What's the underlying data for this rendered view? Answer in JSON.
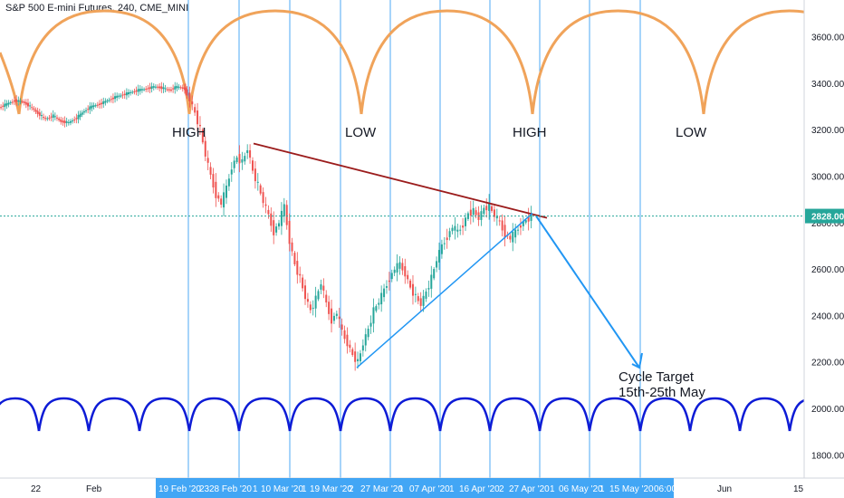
{
  "title": "S&P 500 E-mini Futures, 240, CME_MINI",
  "price_label": "2828.00",
  "colors": {
    "grid_cycle": "#2196f3",
    "upper_arc": "#f0a35a",
    "lower_arc": "#0d1bd6",
    "trend_upper": "#9b1c1c",
    "trend_lower": "#2196f3",
    "arrow": "#2196f3",
    "candle_up": "#26a69a",
    "candle_down": "#ef5350",
    "price_line": "#26a69a",
    "time_highlight": "#2196f3"
  },
  "annotations": [
    "HIGH",
    "LOW",
    "HIGH",
    "LOW"
  ],
  "cycle_target": [
    "Cycle Target",
    "15th-25th May"
  ],
  "chart_data": {
    "type": "candlestick",
    "title": "S&P 500 E-mini Futures, 240, CME_MINI",
    "ylim": [
      1700,
      3750
    ],
    "y_ticks": [
      1800,
      2000,
      2200,
      2400,
      2600,
      2800,
      3000,
      3200,
      3400,
      3600
    ],
    "x_tick_labels": [
      "22",
      "Feb",
      "19 Feb '20",
      "23",
      "28 Feb '20",
      "1",
      "10 Mar '20",
      "1",
      "19 Mar '20",
      "2",
      "27 Mar '20",
      "1",
      "07 Apr '20",
      "1",
      "16 Apr '20",
      "2",
      "27 Apr '20",
      "1",
      "06 May '20",
      "1",
      "15 May '20",
      "06:00",
      "Jun",
      "15"
    ],
    "close_path": [
      [
        3295,
        3310,
        3325,
        3320,
        3300,
        3270,
        3245,
        3260,
        3235,
        3230,
        3250,
        3280,
        3300,
        3310,
        3325,
        3340,
        3350,
        3360,
        3370,
        3375,
        3385,
        3380,
        3370,
        3385,
        3375
      ],
      [
        3370,
        3330,
        3270,
        3200,
        3090,
        3000,
        2920,
        2880,
        2950,
        3040,
        3080,
        3060,
        3120,
        3020,
        2960,
        2890,
        2830,
        2760,
        2800,
        2870,
        2720,
        2620,
        2560,
        2480,
        2420,
        2470,
        2540,
        2450,
        2380,
        2410,
        2330,
        2280,
        2230,
        2200,
        2280,
        2340,
        2420,
        2460,
        2510,
        2560,
        2600,
        2620,
        2580,
        2520,
        2480,
        2450,
        2500,
        2560,
        2640,
        2700,
        2740,
        2780,
        2760,
        2790,
        2840,
        2850,
        2820,
        2860,
        2870,
        2830,
        2800,
        2750,
        2730,
        2760,
        2790,
        2810,
        2828
      ]
    ],
    "trend_lines": [
      {
        "from": [
          "10 Mar '20",
          3140
        ],
        "to": [
          "29 Apr '20",
          2820
        ]
      },
      {
        "from": [
          "23 Mar '20",
          2175
        ],
        "to": [
          "28 Apr '20",
          2840
        ]
      }
    ]
  }
}
